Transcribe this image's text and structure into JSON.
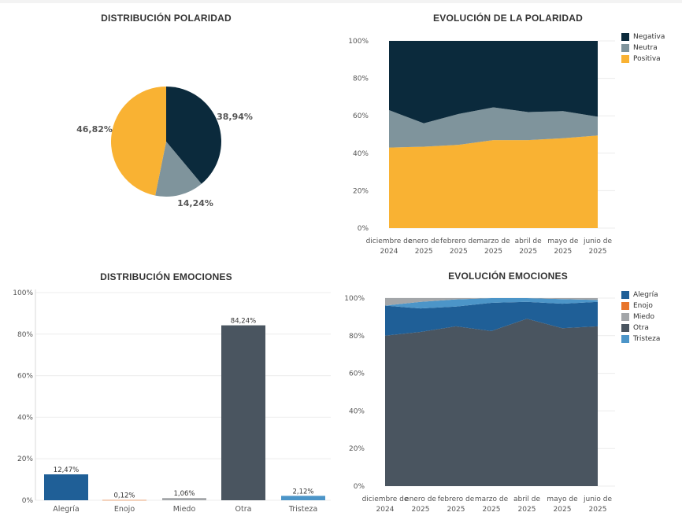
{
  "titles": {
    "pie": "DISTRIBUCIÓN POLARIDAD",
    "pol_area": "EVOLUCIÓN DE LA POLARIDAD",
    "emo_bar": "DISTRIBUCIÓN EMOCIONES",
    "emo_area": "EVOLUCIÓN EMOCIONES"
  },
  "colors": {
    "Negativa": "#0b2a3c",
    "Neutra": "#7f949c",
    "Positiva": "#f9b233",
    "Alegría": "#1f5f97",
    "Enojo": "#e8742a",
    "Miedo": "#a3a6a9",
    "Otra": "#4a5560",
    "Tristeza": "#4c95c8"
  },
  "chart_data": [
    {
      "id": "pie",
      "type": "pie",
      "title": "DISTRIBUCIÓN POLARIDAD",
      "slices": [
        {
          "name": "Negativa",
          "value": 38.94,
          "label": "38,94%"
        },
        {
          "name": "Neutra",
          "value": 14.24,
          "label": "14,24%"
        },
        {
          "name": "Positiva",
          "value": 46.82,
          "label": "46,82%"
        }
      ]
    },
    {
      "id": "pol_area",
      "type": "area",
      "stacked": true,
      "title": "EVOLUCIÓN DE LA POLARIDAD",
      "x": [
        "diciembre de 2024",
        "enero de 2025",
        "febrero de 2025",
        "marzo de 2025",
        "abril de 2025",
        "mayo de 2025",
        "junio de 2025"
      ],
      "ylim": [
        0,
        100
      ],
      "yticks": [
        "0%",
        "20%",
        "40%",
        "60%",
        "80%",
        "100%"
      ],
      "grid": true,
      "legend": "top-right",
      "series": [
        {
          "name": "Positiva",
          "values": [
            43,
            43.5,
            44.5,
            47,
            47,
            48,
            49.5
          ]
        },
        {
          "name": "Neutra",
          "values": [
            20,
            12.5,
            16.5,
            17.5,
            15,
            14.5,
            10
          ]
        },
        {
          "name": "Negativa",
          "values": [
            37,
            44,
            39,
            35.5,
            38,
            37.5,
            40.5
          ]
        }
      ]
    },
    {
      "id": "emo_bar",
      "type": "bar",
      "title": "DISTRIBUCIÓN EMOCIONES",
      "categories": [
        "Alegría",
        "Enojo",
        "Miedo",
        "Otra",
        "Tristeza"
      ],
      "values": [
        12.47,
        0.12,
        1.06,
        84.24,
        2.12
      ],
      "labels": [
        "12,47%",
        "0,12%",
        "1,06%",
        "84,24%",
        "2,12%"
      ],
      "ylim": [
        0,
        100
      ],
      "yticks": [
        "0%",
        "20%",
        "40%",
        "60%",
        "80%",
        "100%"
      ],
      "grid": true
    },
    {
      "id": "emo_area",
      "type": "area",
      "stacked": true,
      "title": "EVOLUCIÓN EMOCIONES",
      "x": [
        "diciembre de 2024",
        "enero de 2025",
        "febrero de 2025",
        "marzo de 2025",
        "abril de 2025",
        "mayo de 2025",
        "junio de 2025"
      ],
      "ylim": [
        0,
        100
      ],
      "yticks": [
        "0%",
        "20%",
        "40%",
        "60%",
        "80%",
        "100%"
      ],
      "grid": true,
      "legend": "top-right",
      "series": [
        {
          "name": "Otra",
          "values": [
            80,
            82,
            85,
            82.5,
            89,
            84,
            85
          ]
        },
        {
          "name": "Alegría",
          "values": [
            16,
            12.5,
            10.5,
            15,
            9,
            13,
            13
          ]
        },
        {
          "name": "Tristeza",
          "values": [
            0,
            3.5,
            3.8,
            2.5,
            2,
            2.5,
            1
          ]
        },
        {
          "name": "Enojo",
          "values": [
            0,
            0,
            0,
            0,
            0,
            0,
            0
          ]
        },
        {
          "name": "Miedo",
          "values": [
            4,
            2,
            0.7,
            0,
            0,
            0.5,
            1
          ]
        }
      ]
    }
  ]
}
